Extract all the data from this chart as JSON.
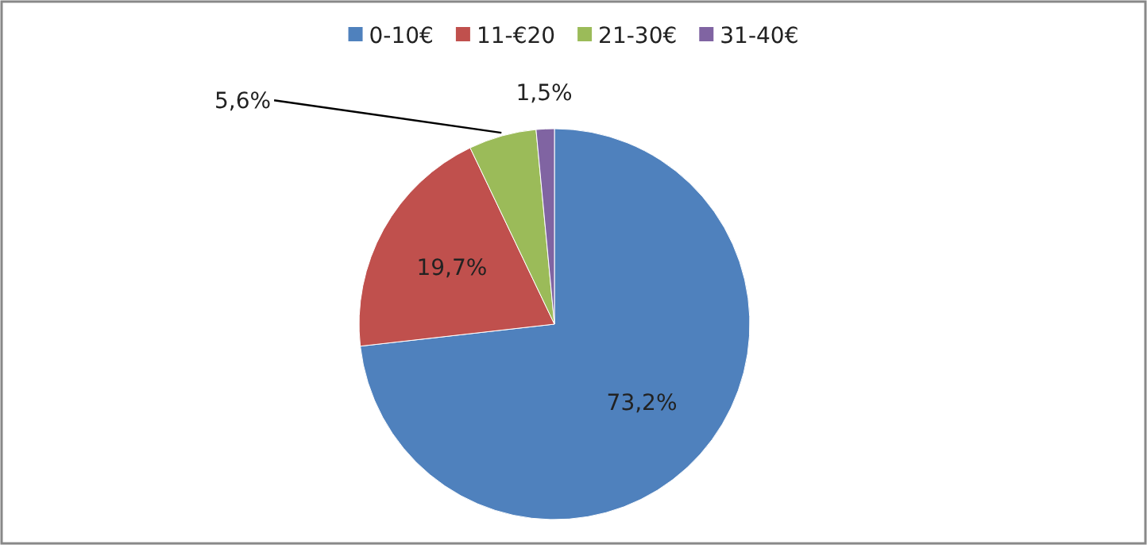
{
  "chart_data": {
    "type": "pie",
    "categories": [
      "0-10€",
      "11-€20",
      "21-30€",
      "31-40€"
    ],
    "values": [
      73.2,
      19.7,
      5.6,
      1.5
    ],
    "colors": [
      "#4f81bd",
      "#c0504d",
      "#9bbb59",
      "#8064a2"
    ],
    "value_labels": [
      "73,2%",
      "19,7%",
      "5,6%",
      "1,5%"
    ],
    "legend": "top"
  }
}
